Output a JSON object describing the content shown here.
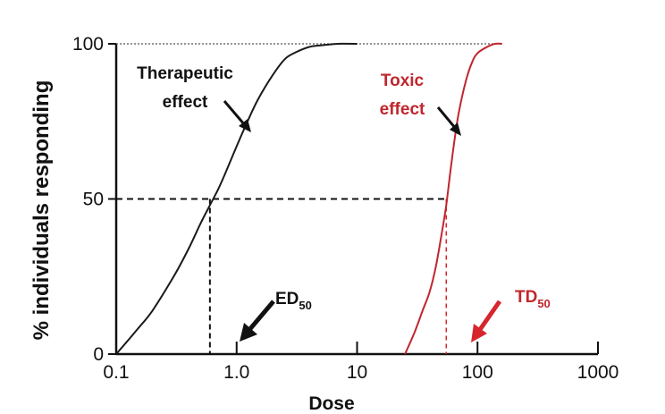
{
  "chart_data": {
    "type": "line",
    "xlabel": "Dose",
    "ylabel": "% individuals responding",
    "x_scale": "log",
    "xlim": [
      0.1,
      1000
    ],
    "ylim": [
      0,
      100
    ],
    "x_ticks": [
      0.1,
      1.0,
      10,
      100,
      1000
    ],
    "x_tick_labels": [
      "0.1",
      "1.0",
      "10",
      "100",
      "1000"
    ],
    "y_ticks": [
      0,
      50,
      100
    ],
    "y_tick_labels": [
      "0",
      "50",
      "100"
    ],
    "grid": false,
    "series": [
      {
        "name": "Therapeutic effect",
        "color": "#1a1a1a",
        "x": [
          0.1,
          0.15,
          0.2,
          0.3,
          0.4,
          0.5,
          0.6,
          0.7,
          0.8,
          1.0,
          1.2,
          1.5,
          2.0,
          2.5,
          3.0,
          4.0,
          5.0,
          7.0,
          10
        ],
        "y": [
          0,
          8,
          14,
          25,
          34,
          42,
          48,
          53,
          58,
          67,
          74,
          82,
          90,
          95,
          97,
          99,
          99.5,
          100,
          100
        ]
      },
      {
        "name": "Toxic effect",
        "color": "#c0262d",
        "x": [
          25,
          30,
          35,
          40,
          45,
          50,
          55,
          60,
          65,
          70,
          80,
          90,
          100,
          120,
          140,
          160
        ],
        "y": [
          0,
          7,
          14,
          20,
          28,
          38,
          48,
          60,
          70,
          78,
          88,
          94,
          97,
          99,
          100,
          100
        ]
      }
    ],
    "ed50": 0.6,
    "td50": 55,
    "annotations": {
      "therapeutic_line1": "Therapeutic",
      "therapeutic_line2": "effect",
      "toxic_line1": "Toxic",
      "toxic_line2": "effect",
      "ed50_main": "ED",
      "ed50_sub": "50",
      "td50_main": "TD",
      "td50_sub": "50"
    }
  }
}
